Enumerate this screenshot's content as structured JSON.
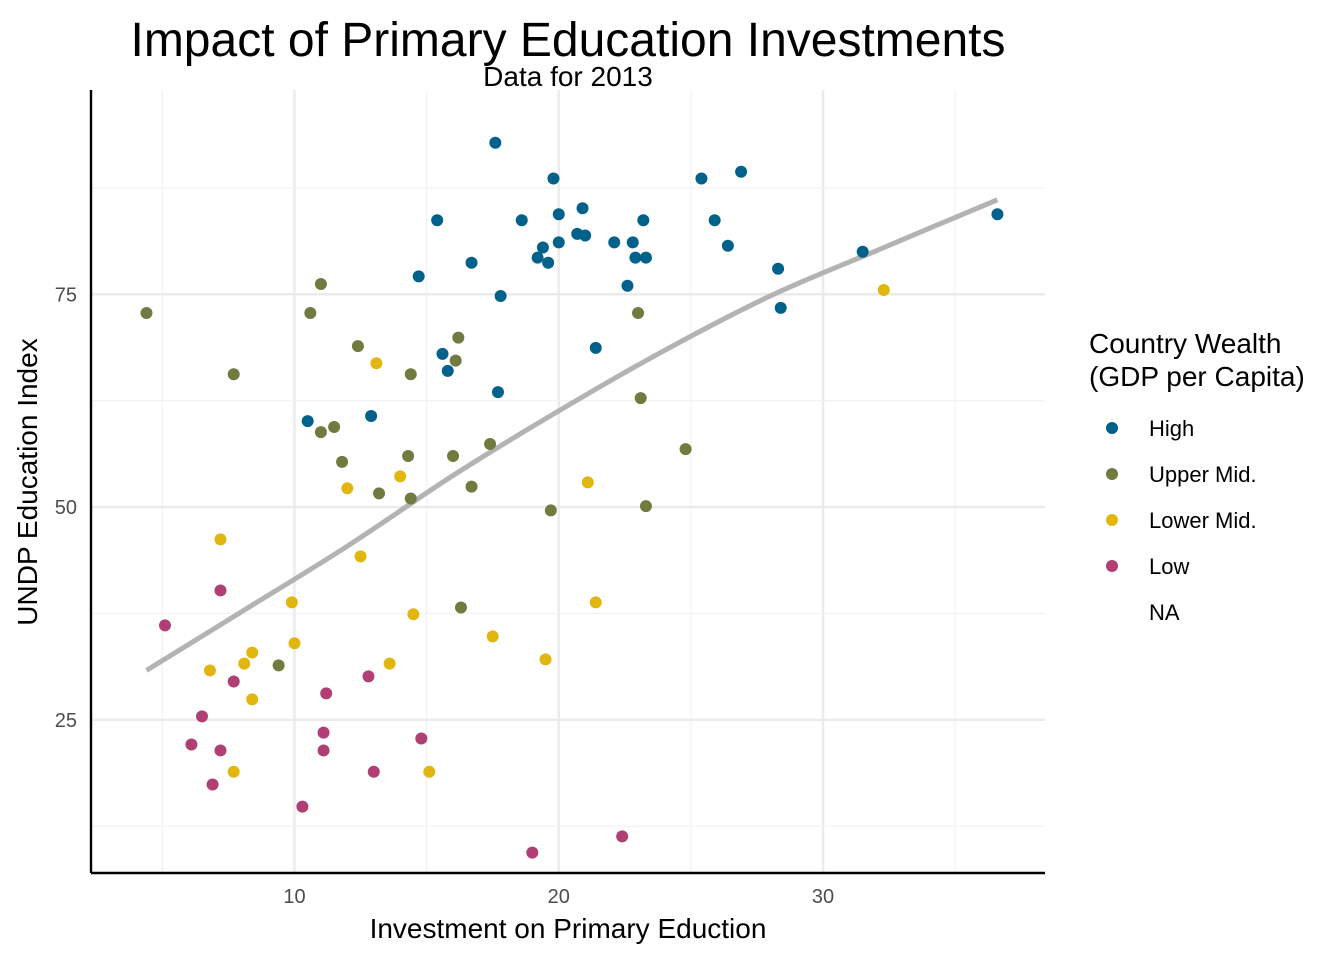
{
  "chart_data": {
    "type": "scatter",
    "title": "Impact of Primary Education Investments",
    "subtitle": "Data for 2013",
    "xlabel": "Investment on Primary Eduction",
    "ylabel": "UNDP Education Index",
    "xlim": [
      2.3,
      38.4
    ],
    "ylim": [
      7.0,
      99.0
    ],
    "xticks": [
      10,
      20,
      30
    ],
    "yticks": [
      25,
      50,
      75
    ],
    "xtick_labels": [
      "10",
      "20",
      "30"
    ],
    "ytick_labels": [
      "25",
      "50",
      "75"
    ],
    "grid": true,
    "legend": {
      "title": "Country Wealth\n(GDP per Capita)",
      "title_lines": [
        "Country Wealth",
        "(GDP per Capita)"
      ],
      "position": "right",
      "entries": [
        {
          "label": "High",
          "color": "#00628b"
        },
        {
          "label": "Upper Mid.",
          "color": "#727a40"
        },
        {
          "label": "Lower Mid.",
          "color": "#e1b70f"
        },
        {
          "label": "Low",
          "color": "#b03f74"
        },
        {
          "label": "NA",
          "color": null
        }
      ]
    },
    "trend_line": {
      "color": "#b3b3b3",
      "x": [
        4.4,
        8,
        12,
        16,
        20,
        24,
        28,
        32,
        36.6
      ],
      "y": [
        30.8,
        37.7,
        45.4,
        53.7,
        61.3,
        68.4,
        74.8,
        80.1,
        86.1
      ]
    },
    "series": [
      {
        "name": "High",
        "color": "#00628b",
        "x": [
          17.6,
          19.8,
          20.9,
          20.0,
          15.4,
          18.6,
          19.4,
          21.0,
          22.1,
          23.2,
          22.8,
          19.2,
          20.0,
          20.7,
          19.6,
          22.9,
          23.3,
          14.7,
          16.7,
          17.8,
          22.6,
          25.4,
          25.9,
          26.9,
          26.4,
          28.3,
          28.4,
          31.5,
          36.6,
          21.4,
          15.6,
          15.8,
          17.7,
          10.5,
          12.9
        ],
        "y": [
          92.8,
          88.6,
          85.1,
          84.4,
          83.7,
          83.7,
          80.5,
          81.9,
          81.1,
          83.7,
          81.1,
          79.3,
          81.1,
          82.1,
          78.7,
          79.3,
          79.3,
          77.1,
          78.7,
          74.8,
          76.0,
          88.6,
          83.7,
          89.4,
          80.7,
          78.0,
          73.4,
          80.0,
          84.4,
          68.7,
          68.0,
          66.0,
          63.5,
          60.1,
          60.7
        ]
      },
      {
        "name": "Upper Mid.",
        "color": "#727a40",
        "x": [
          4.4,
          7.7,
          10.6,
          11.0,
          12.4,
          14.4,
          16.1,
          16.2,
          11.0,
          11.5,
          11.8,
          13.2,
          14.4,
          14.3,
          16.0,
          16.7,
          17.4,
          19.7,
          23.0,
          23.1,
          23.3,
          24.8,
          9.4,
          16.3
        ],
        "y": [
          72.8,
          65.6,
          72.8,
          76.2,
          68.9,
          65.6,
          67.2,
          69.9,
          58.8,
          59.4,
          55.3,
          51.6,
          51.0,
          56.0,
          56.0,
          52.4,
          57.4,
          49.6,
          72.8,
          62.8,
          50.1,
          56.8,
          31.4,
          38.2
        ]
      },
      {
        "name": "Lower Mid.",
        "color": "#e1b70f",
        "x": [
          13.1,
          12.0,
          14.0,
          21.1,
          32.3,
          7.2,
          12.5,
          9.9,
          10.0,
          14.5,
          8.4,
          8.1,
          6.8,
          8.4,
          13.6,
          17.5,
          19.5,
          21.4,
          7.7,
          15.1
        ],
        "y": [
          66.9,
          52.2,
          53.6,
          52.9,
          75.5,
          46.2,
          44.2,
          38.8,
          34.0,
          37.4,
          32.9,
          31.6,
          30.8,
          27.4,
          31.6,
          34.8,
          32.1,
          38.8,
          18.9,
          18.9
        ]
      },
      {
        "name": "Low",
        "color": "#b03f74",
        "x": [
          5.1,
          7.2,
          7.7,
          6.5,
          6.1,
          7.2,
          6.9,
          11.2,
          11.1,
          11.1,
          12.8,
          13.0,
          14.8,
          10.3,
          19.0,
          22.4
        ],
        "y": [
          36.1,
          40.2,
          29.5,
          25.4,
          22.1,
          21.4,
          17.4,
          28.1,
          23.5,
          21.4,
          30.1,
          18.9,
          22.8,
          14.8,
          9.4,
          11.3
        ]
      }
    ]
  }
}
